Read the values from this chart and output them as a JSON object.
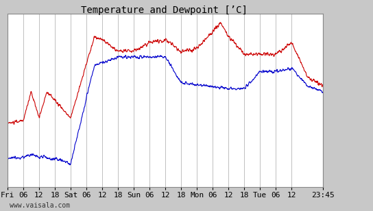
{
  "title": "Temperature and Dewpoint [’C]",
  "ylim": [
    -20,
    10
  ],
  "yticks": [
    -20,
    -15,
    -10,
    -5,
    0,
    5,
    10
  ],
  "background_color": "#c8c8c8",
  "plot_bg_color": "#ffffff",
  "grid_color": "#c0c0c0",
  "temp_color": "#cc0000",
  "dew_color": "#0000cc",
  "line_width": 0.8,
  "title_fontsize": 10,
  "tick_fontsize": 8,
  "watermark": "www.vaisala.com",
  "x_tick_labels": [
    "Fri",
    "06",
    "12",
    "18",
    "Sat",
    "06",
    "12",
    "18",
    "Sun",
    "06",
    "12",
    "18",
    "Mon",
    "06",
    "12",
    "18",
    "Tue",
    "06",
    "12",
    "23:45"
  ],
  "x_tick_positions": [
    0,
    6,
    12,
    18,
    24,
    30,
    36,
    42,
    48,
    54,
    60,
    66,
    72,
    78,
    84,
    90,
    96,
    102,
    108,
    119.75
  ],
  "xlim": [
    0,
    119.75
  ]
}
